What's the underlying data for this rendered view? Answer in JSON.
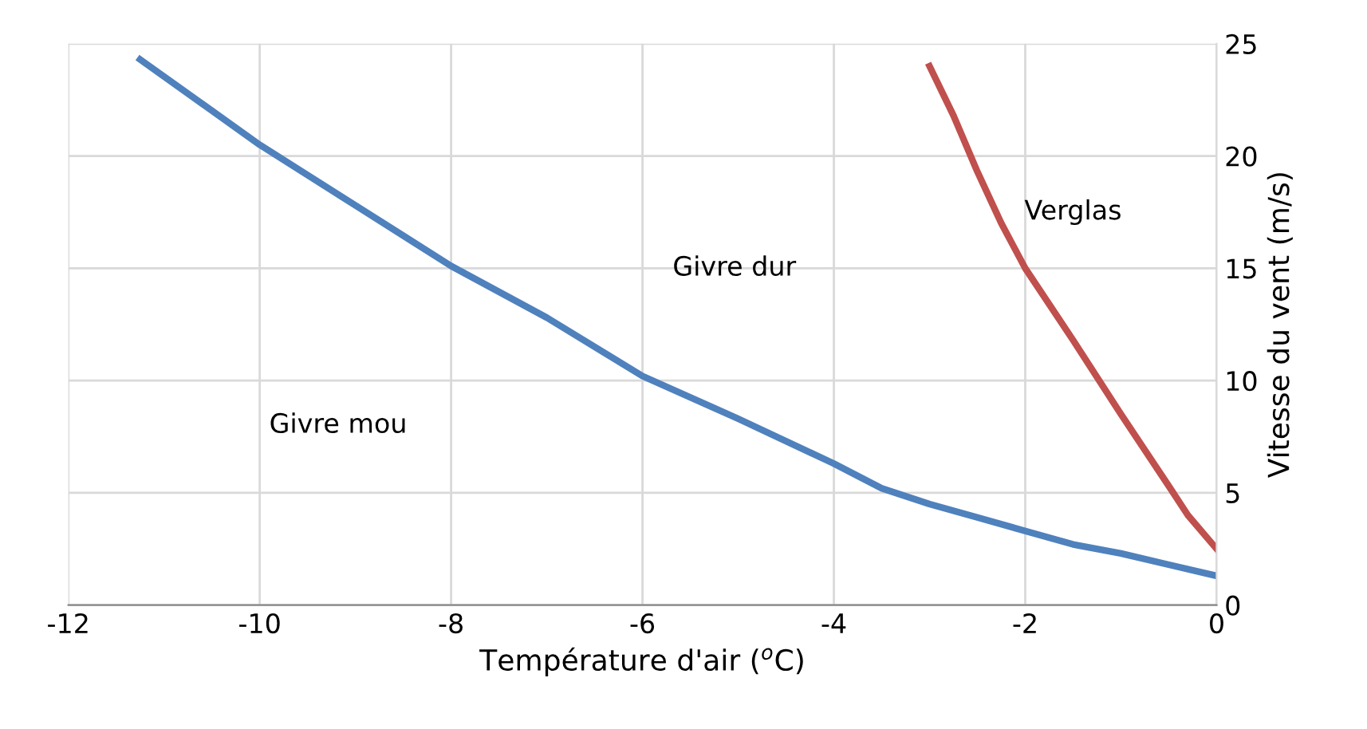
{
  "chart_data": {
    "type": "line",
    "xlabel": "Température d'air ($^{o}$C)",
    "ylabel": "Vitesse du vent (m/s)",
    "xlim": [
      -12,
      0
    ],
    "xticks": [
      -12,
      -10,
      -8,
      -6,
      -4,
      -2,
      0
    ],
    "ylim": [
      0,
      25
    ],
    "yticks": [
      0,
      5,
      10,
      15,
      20,
      25
    ],
    "grid": true,
    "legend": false,
    "series": [
      {
        "color": "#4f81bd",
        "x": [
          -11.25,
          -10,
          -9,
          -8,
          -7,
          -6,
          -5,
          -4,
          -3.5,
          -3,
          -2.5,
          -2,
          -1.5,
          -1,
          -0.5,
          0
        ],
        "values": [
          24.3,
          20.5,
          17.8,
          15.1,
          12.8,
          10.2,
          8.3,
          6.3,
          5.2,
          4.5,
          3.9,
          3.3,
          2.7,
          2.3,
          1.8,
          1.3
        ]
      },
      {
        "color": "#c0504d",
        "x": [
          -3,
          -2.75,
          -2.5,
          -2.25,
          -2,
          -1.5,
          -1,
          -0.5,
          -0.3,
          0
        ],
        "values": [
          24,
          21.8,
          19.3,
          17,
          15,
          11.8,
          8.5,
          5.3,
          4,
          2.5
        ]
      }
    ],
    "annotations": [
      "Givre mou",
      "Givre dur",
      "Verglas"
    ]
  }
}
